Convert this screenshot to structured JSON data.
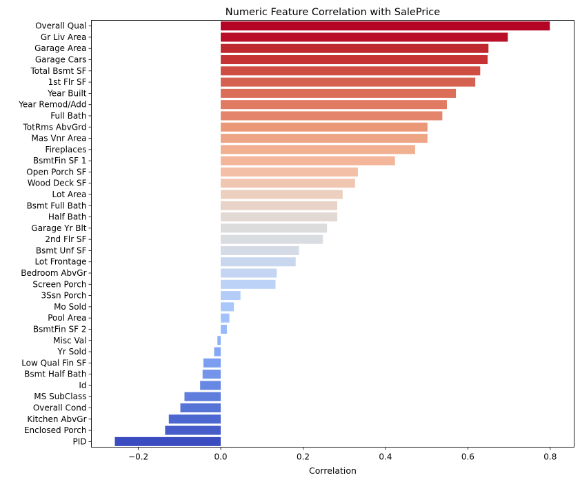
{
  "chart_data": {
    "type": "bar",
    "orientation": "horizontal",
    "title": "Numeric Feature Correlation with SalePrice",
    "xlabel": "Correlation",
    "ylabel": "",
    "xlim": [
      -0.314,
      0.858
    ],
    "xticks": [
      -0.2,
      0.0,
      0.2,
      0.4,
      0.6,
      0.8
    ],
    "xtick_labels": [
      "−0.2",
      "0.0",
      "0.2",
      "0.4",
      "0.6",
      "0.8"
    ],
    "grid": false,
    "palette": "coolwarm",
    "colors": [
      "#b40426",
      "#b90d28",
      "#c0282f",
      "#c53334",
      "#ce4e44",
      "#d56250",
      "#da6e59",
      "#e07a62",
      "#e4856b",
      "#ea9878",
      "#eda586",
      "#f1b092",
      "#f3b69a",
      "#f3bfa6",
      "#f1c6b1",
      "#eccfbf",
      "#e7d3c8",
      "#e2d9d4",
      "#dddcdc",
      "#d9dce1",
      "#d4dbe6",
      "#c8d7ee",
      "#c3d5f3",
      "#bcd2f6",
      "#b4cdf8",
      "#aac7fa",
      "#a3c2fb",
      "#99bafa",
      "#8fb1f9",
      "#85a8f5",
      "#7b9ef1",
      "#7295ea",
      "#6788e2",
      "#5e7ddc",
      "#5673d6",
      "#4c67cf",
      "#465dc9",
      "#3b4cc0"
    ],
    "categories": [
      "Overall Qual",
      "Gr Liv Area",
      "Garage Area",
      "Garage Cars",
      "Total Bsmt SF",
      "1st Flr SF",
      "Year Built",
      "Year Remod/Add",
      "Full Bath",
      "TotRms AbvGrd",
      "Mas Vnr Area",
      "Fireplaces",
      "BsmtFin SF 1",
      "Open Porch SF",
      "Wood Deck SF",
      "Lot Area",
      "Bsmt Full Bath",
      "Half Bath",
      "Garage Yr Blt",
      "2nd Flr SF",
      "Bsmt Unf SF",
      "Lot Frontage",
      "Bedroom AbvGr",
      "Screen Porch",
      "3Ssn Porch",
      "Mo Sold",
      "Pool Area",
      "BsmtFin SF 2",
      "Misc Val",
      "Yr Sold",
      "Low Qual Fin SF",
      "Bsmt Half Bath",
      "Id",
      "MS SubClass",
      "Overall Cond",
      "Kitchen AbvGr",
      "Enclosed Porch",
      "PID"
    ],
    "values": [
      0.799,
      0.697,
      0.65,
      0.648,
      0.63,
      0.618,
      0.571,
      0.549,
      0.538,
      0.502,
      0.502,
      0.472,
      0.423,
      0.333,
      0.326,
      0.296,
      0.283,
      0.283,
      0.258,
      0.248,
      0.19,
      0.182,
      0.136,
      0.133,
      0.048,
      0.032,
      0.021,
      0.015,
      -0.008,
      -0.016,
      -0.042,
      -0.044,
      -0.05,
      -0.088,
      -0.098,
      -0.126,
      -0.135,
      -0.257
    ]
  }
}
